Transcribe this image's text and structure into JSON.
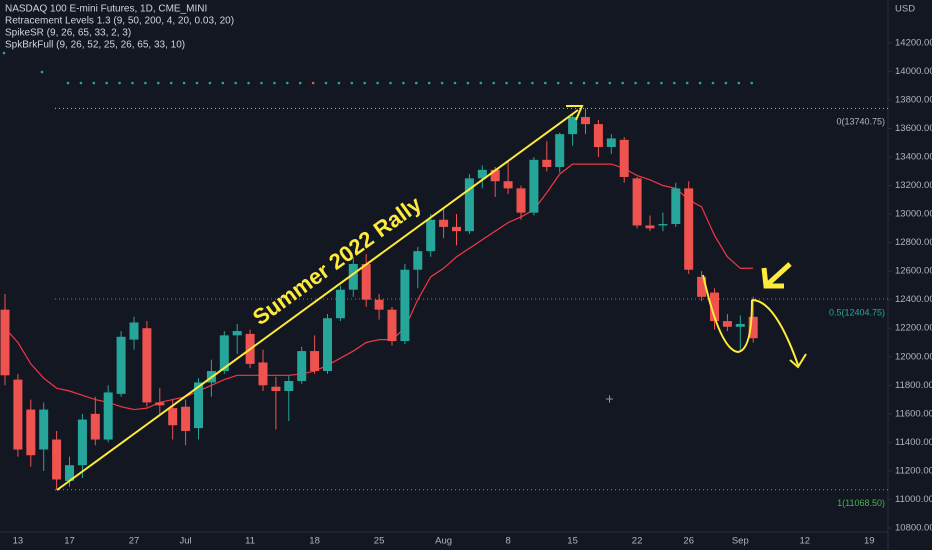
{
  "chart_data": {
    "type": "candlestick",
    "title": "NASDAQ 100 E-mini Futures, 1D, CME_MINI",
    "indicators": [
      "Retracement Levels 1.3 (9, 50, 200, 4, 20, 0.03, 20)",
      "SpikeSR (9, 26, 65, 33, 2, 3)",
      "SpkBrkFull (9, 26, 52, 25, 26, 65, 33, 10)"
    ],
    "currency": "USD",
    "annotation": "Summer 2022 Rally",
    "categories": [
      null,
      "13",
      null,
      null,
      null,
      "17",
      null,
      null,
      null,
      null,
      "27",
      null,
      null,
      null,
      "Jul",
      null,
      null,
      null,
      null,
      "11",
      null,
      null,
      null,
      null,
      "18",
      null,
      null,
      null,
      null,
      "25",
      null,
      null,
      null,
      null,
      "Aug",
      null,
      null,
      null,
      null,
      "8",
      null,
      null,
      null,
      null,
      "15",
      null,
      null,
      null,
      null,
      "22",
      null,
      null,
      null,
      "26",
      null,
      null,
      null,
      "Sep",
      null,
      null,
      null,
      null,
      "12",
      null,
      null,
      null,
      null,
      "19"
    ],
    "open": [
      12330,
      11840,
      11630,
      11350,
      11420,
      11130,
      11240,
      11600,
      11420,
      11740,
      12120,
      12200,
      11680,
      11640,
      11650,
      11500,
      11820,
      11900,
      12150,
      12160,
      11960,
      11790,
      11760,
      11830,
      12040,
      11900,
      12270,
      12470,
      12650,
      12400,
      12330,
      12110,
      12610,
      12740,
      12960,
      12910,
      12880,
      13250,
      13310,
      13230,
      13180,
      13010,
      13380,
      13330,
      13560,
      13680,
      13630,
      13470,
      13520,
      13250,
      12920,
      12920,
      12930,
      13180,
      12560,
      12450,
      12250,
      12210,
      12280,
      null,
      null,
      null,
      null,
      null,
      null,
      null,
      null,
      null
    ],
    "high": [
      12440,
      11880,
      11700,
      11680,
      11480,
      11300,
      11600,
      11720,
      11800,
      12180,
      12280,
      12250,
      11780,
      11700,
      11700,
      11850,
      11980,
      12180,
      12230,
      12190,
      12050,
      11860,
      11870,
      12070,
      12150,
      12300,
      12500,
      12700,
      12720,
      12440,
      12350,
      12650,
      12770,
      13000,
      13050,
      13000,
      13280,
      13340,
      13330,
      13370,
      13200,
      13400,
      13510,
      13570,
      13700,
      13740,
      13660,
      13560,
      13540,
      13260,
      12990,
      13010,
      13220,
      13230,
      12600,
      12480,
      12300,
      12290,
      12420,
      null,
      null,
      null,
      null,
      null,
      null,
      null,
      null,
      null
    ],
    "low": [
      11800,
      11300,
      11230,
      11200,
      11068.5,
      11090,
      11150,
      11380,
      11400,
      11720,
      12050,
      11650,
      11600,
      11420,
      11380,
      11420,
      11720,
      11880,
      12020,
      11920,
      11760,
      11490,
      11550,
      11810,
      11880,
      11880,
      12250,
      12420,
      12350,
      12260,
      12080,
      12090,
      12480,
      12700,
      12830,
      12780,
      12860,
      13180,
      13120,
      13140,
      12960,
      12990,
      13300,
      13290,
      13480,
      13560,
      13400,
      13420,
      13220,
      12900,
      12880,
      12880,
      12910,
      12580,
      12390,
      12190,
      12180,
      12040,
      12100,
      null,
      null,
      null,
      null,
      null,
      null,
      null,
      null,
      null
    ],
    "close": [
      11870,
      11350,
      11310,
      11630,
      11140,
      11240,
      11560,
      11420,
      11750,
      12140,
      12240,
      11680,
      11660,
      11520,
      11480,
      11820,
      11900,
      12150,
      12180,
      11950,
      11800,
      11760,
      11830,
      12040,
      11900,
      12270,
      12470,
      12650,
      12400,
      12330,
      12110,
      12610,
      12740,
      12960,
      12910,
      12880,
      13250,
      13310,
      13230,
      13180,
      13010,
      13380,
      13330,
      13560,
      13680,
      13630,
      13470,
      13530,
      13260,
      12920,
      12900,
      12930,
      13180,
      12610,
      12420,
      12250,
      12210,
      12230,
      12130,
      null,
      null,
      null,
      null,
      null,
      null,
      null,
      null,
      null
    ],
    "up_color": "#26a69a",
    "down_color": "#ef5350",
    "line": {
      "color": "#f23645",
      "values": [
        12200,
        12100,
        11950,
        11850,
        11780,
        11760,
        11730,
        11700,
        11680,
        11650,
        11630,
        11640,
        11680,
        11700,
        11720,
        11760,
        11800,
        11840,
        11870,
        11870,
        11870,
        11870,
        11870,
        11880,
        11900,
        11940,
        11990,
        12040,
        12100,
        12120,
        12120,
        12200,
        12400,
        12560,
        12620,
        12700,
        12760,
        12820,
        12880,
        12940,
        12980,
        13030,
        13150,
        13280,
        13350,
        13350,
        13350,
        13350,
        13320,
        13270,
        13240,
        13200,
        13180,
        13100,
        13050,
        12850,
        12700,
        12620,
        12620,
        null,
        null,
        null,
        null,
        null,
        null,
        null,
        null,
        null
      ]
    },
    "levels": [
      {
        "value": 13740.75,
        "label": "0(13740.75)",
        "color": "#b2b5be"
      },
      {
        "value": 12404.75,
        "label": "0.5(12404.75)",
        "color": "#26a69a"
      },
      {
        "value": 11068.5,
        "label": "1(11068.50)",
        "color": "#4caf50"
      }
    ],
    "ylim": [
      10772,
      14500
    ],
    "yticks": [
      {
        "value": 10800,
        "label": "10800.00"
      },
      {
        "value": 11000,
        "label": "11000.00"
      },
      {
        "value": 11200,
        "label": "11200.00"
      },
      {
        "value": 11400,
        "label": "11400.00"
      },
      {
        "value": 11600,
        "label": "11600.00"
      },
      {
        "value": 11800,
        "label": "11800.00"
      },
      {
        "value": 12000,
        "label": "12000.00"
      },
      {
        "value": 12200,
        "label": "12200.00"
      },
      {
        "value": 12400,
        "label": "12400.00"
      },
      {
        "value": 12600,
        "label": "12600.00"
      },
      {
        "value": 12800,
        "label": "12800.00"
      },
      {
        "value": 13000,
        "label": "13000.00"
      },
      {
        "value": 13200,
        "label": "13200.00"
      },
      {
        "value": 13400,
        "label": "13400.00"
      },
      {
        "value": 13600,
        "label": "13600.00"
      },
      {
        "value": 13800,
        "label": "13800.00"
      },
      {
        "value": 14000,
        "label": "14000.00"
      },
      {
        "value": 14200,
        "label": "14200.00"
      }
    ]
  }
}
